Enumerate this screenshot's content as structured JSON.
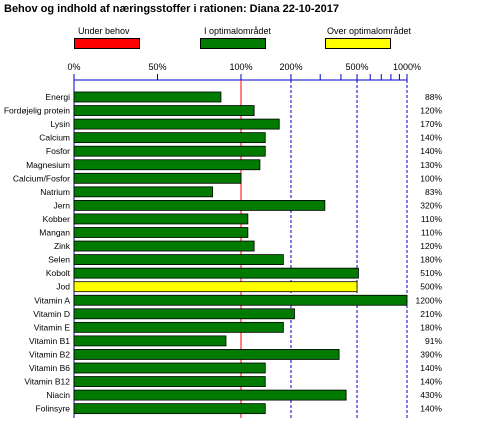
{
  "title": "Behov og indhold af næringsstoffer i rationen: Diana 22-10-2017",
  "legend": [
    {
      "label": "Under behov",
      "color": "#ff0000"
    },
    {
      "label": "I optimalområdet",
      "color": "#007a00"
    },
    {
      "label": "Over optimalområdet",
      "color": "#ffff00"
    }
  ],
  "chart_data": {
    "type": "bar",
    "orientation": "horizontal",
    "x_axis_scale": "piecewise: linear 0-100%, logarithmic 100-1000%",
    "x_ticks": [
      "0%",
      "50%",
      "100%",
      "200%",
      "500%",
      "1000%"
    ],
    "categories": [
      "Energi",
      "Fordøjelig protein",
      "Lysin",
      "Calcium",
      "Fosfor",
      "Magnesium",
      "Calcium/Fosfor",
      "Natrium",
      "Jern",
      "Kobber",
      "Mangan",
      "Zink",
      "Selen",
      "Kobolt",
      "Jod",
      "Vitamin A",
      "Vitamin D",
      "Vitamin E",
      "Vitamin B1",
      "Vitamin B2",
      "Vitamin B6",
      "Vitamin B12",
      "Niacin",
      "Folinsyre"
    ],
    "values": [
      88,
      120,
      170,
      140,
      140,
      130,
      100,
      83,
      320,
      110,
      110,
      120,
      180,
      510,
      500,
      1200,
      210,
      180,
      91,
      390,
      140,
      140,
      430,
      140
    ],
    "value_labels": [
      "88%",
      "120%",
      "170%",
      "140%",
      "140%",
      "130%",
      "100%",
      "83%",
      "320%",
      "110%",
      "110%",
      "120%",
      "180%",
      "510%",
      "500%",
      "1200%",
      "210%",
      "180%",
      "91%",
      "390%",
      "140%",
      "140%",
      "430%",
      "140%"
    ],
    "bar_status": [
      "I optimalområdet",
      "I optimalområdet",
      "I optimalområdet",
      "I optimalområdet",
      "I optimalområdet",
      "I optimalområdet",
      "I optimalområdet",
      "I optimalområdet",
      "I optimalområdet",
      "I optimalområdet",
      "I optimalområdet",
      "I optimalområdet",
      "I optimalområdet",
      "I optimalområdet",
      "Over optimalområdet",
      "I optimalområdet",
      "I optimalområdet",
      "I optimalområdet",
      "I optimalområdet",
      "I optimalområdet",
      "I optimalområdet",
      "I optimalområdet",
      "I optimalområdet",
      "I optimalområdet"
    ],
    "reference_line": 100,
    "dashed_lines": [
      200,
      500,
      1000
    ]
  }
}
